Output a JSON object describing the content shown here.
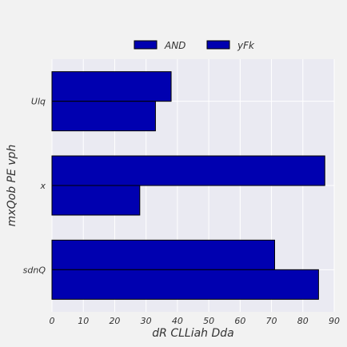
{
  "chart_data": {
    "type": "bar",
    "orientation": "horizontal",
    "categories": [
      "sdnQ",
      "x",
      "Ulq"
    ],
    "series": [
      {
        "name": "AND",
        "values": [
          71,
          87,
          38
        ]
      },
      {
        "name": "yFk",
        "values": [
          85,
          28,
          33
        ]
      }
    ],
    "xlabel": "dR  CLLiah Dda",
    "ylabel": "mxQob PE  vph",
    "xlim": [
      0,
      90
    ],
    "xticks": [
      0,
      10,
      20,
      30,
      40,
      50,
      60,
      70,
      80,
      90
    ],
    "grid": true,
    "legend_position": "top-center",
    "colors": {
      "bar_fill": "#0000b0",
      "bar_edge": "#000000",
      "plot_bg": "#eaeaf2",
      "page_bg": "#f2f2f2",
      "grid": "#ffffff"
    }
  }
}
